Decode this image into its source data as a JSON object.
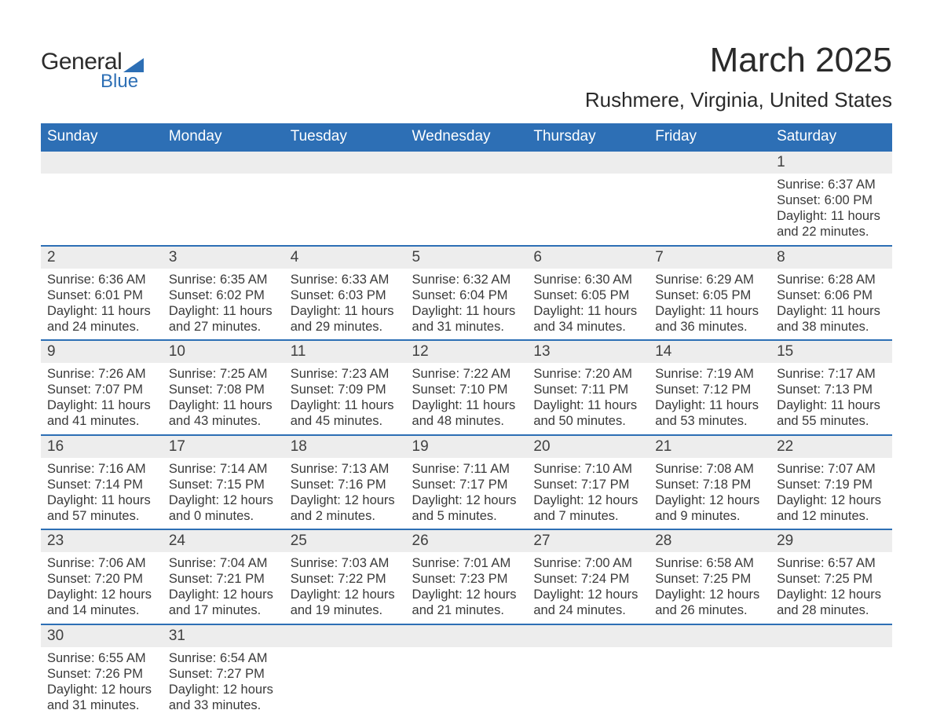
{
  "logo": {
    "main": "General",
    "sub": "Blue",
    "accent_color": "#2d6fb5"
  },
  "title": {
    "month": "March 2025",
    "location": "Rushmere, Virginia, United States"
  },
  "calendar": {
    "type": "table",
    "header_bg": "#2d6fb5",
    "header_text_color": "#ffffff",
    "row_separator_color": "#2d6fb5",
    "daynum_bg": "#ededed",
    "body_bg": "#ffffff",
    "text_color": "#3a3a3a",
    "header_fontsize": 19,
    "daynum_fontsize": 19,
    "body_fontsize": 16.5,
    "columns": [
      "Sunday",
      "Monday",
      "Tuesday",
      "Wednesday",
      "Thursday",
      "Friday",
      "Saturday"
    ],
    "weeks": [
      [
        null,
        null,
        null,
        null,
        null,
        null,
        {
          "n": "1",
          "sunrise": "6:37 AM",
          "sunset": "6:00 PM",
          "day_h": "11",
          "day_m": "22"
        }
      ],
      [
        {
          "n": "2",
          "sunrise": "6:36 AM",
          "sunset": "6:01 PM",
          "day_h": "11",
          "day_m": "24"
        },
        {
          "n": "3",
          "sunrise": "6:35 AM",
          "sunset": "6:02 PM",
          "day_h": "11",
          "day_m": "27"
        },
        {
          "n": "4",
          "sunrise": "6:33 AM",
          "sunset": "6:03 PM",
          "day_h": "11",
          "day_m": "29"
        },
        {
          "n": "5",
          "sunrise": "6:32 AM",
          "sunset": "6:04 PM",
          "day_h": "11",
          "day_m": "31"
        },
        {
          "n": "6",
          "sunrise": "6:30 AM",
          "sunset": "6:05 PM",
          "day_h": "11",
          "day_m": "34"
        },
        {
          "n": "7",
          "sunrise": "6:29 AM",
          "sunset": "6:05 PM",
          "day_h": "11",
          "day_m": "36"
        },
        {
          "n": "8",
          "sunrise": "6:28 AM",
          "sunset": "6:06 PM",
          "day_h": "11",
          "day_m": "38"
        }
      ],
      [
        {
          "n": "9",
          "sunrise": "7:26 AM",
          "sunset": "7:07 PM",
          "day_h": "11",
          "day_m": "41"
        },
        {
          "n": "10",
          "sunrise": "7:25 AM",
          "sunset": "7:08 PM",
          "day_h": "11",
          "day_m": "43"
        },
        {
          "n": "11",
          "sunrise": "7:23 AM",
          "sunset": "7:09 PM",
          "day_h": "11",
          "day_m": "45"
        },
        {
          "n": "12",
          "sunrise": "7:22 AM",
          "sunset": "7:10 PM",
          "day_h": "11",
          "day_m": "48"
        },
        {
          "n": "13",
          "sunrise": "7:20 AM",
          "sunset": "7:11 PM",
          "day_h": "11",
          "day_m": "50"
        },
        {
          "n": "14",
          "sunrise": "7:19 AM",
          "sunset": "7:12 PM",
          "day_h": "11",
          "day_m": "53"
        },
        {
          "n": "15",
          "sunrise": "7:17 AM",
          "sunset": "7:13 PM",
          "day_h": "11",
          "day_m": "55"
        }
      ],
      [
        {
          "n": "16",
          "sunrise": "7:16 AM",
          "sunset": "7:14 PM",
          "day_h": "11",
          "day_m": "57"
        },
        {
          "n": "17",
          "sunrise": "7:14 AM",
          "sunset": "7:15 PM",
          "day_h": "12",
          "day_m": "0"
        },
        {
          "n": "18",
          "sunrise": "7:13 AM",
          "sunset": "7:16 PM",
          "day_h": "12",
          "day_m": "2"
        },
        {
          "n": "19",
          "sunrise": "7:11 AM",
          "sunset": "7:17 PM",
          "day_h": "12",
          "day_m": "5"
        },
        {
          "n": "20",
          "sunrise": "7:10 AM",
          "sunset": "7:17 PM",
          "day_h": "12",
          "day_m": "7"
        },
        {
          "n": "21",
          "sunrise": "7:08 AM",
          "sunset": "7:18 PM",
          "day_h": "12",
          "day_m": "9"
        },
        {
          "n": "22",
          "sunrise": "7:07 AM",
          "sunset": "7:19 PM",
          "day_h": "12",
          "day_m": "12"
        }
      ],
      [
        {
          "n": "23",
          "sunrise": "7:06 AM",
          "sunset": "7:20 PM",
          "day_h": "12",
          "day_m": "14"
        },
        {
          "n": "24",
          "sunrise": "7:04 AM",
          "sunset": "7:21 PM",
          "day_h": "12",
          "day_m": "17"
        },
        {
          "n": "25",
          "sunrise": "7:03 AM",
          "sunset": "7:22 PM",
          "day_h": "12",
          "day_m": "19"
        },
        {
          "n": "26",
          "sunrise": "7:01 AM",
          "sunset": "7:23 PM",
          "day_h": "12",
          "day_m": "21"
        },
        {
          "n": "27",
          "sunrise": "7:00 AM",
          "sunset": "7:24 PM",
          "day_h": "12",
          "day_m": "24"
        },
        {
          "n": "28",
          "sunrise": "6:58 AM",
          "sunset": "7:25 PM",
          "day_h": "12",
          "day_m": "26"
        },
        {
          "n": "29",
          "sunrise": "6:57 AM",
          "sunset": "7:25 PM",
          "day_h": "12",
          "day_m": "28"
        }
      ],
      [
        {
          "n": "30",
          "sunrise": "6:55 AM",
          "sunset": "7:26 PM",
          "day_h": "12",
          "day_m": "31"
        },
        {
          "n": "31",
          "sunrise": "6:54 AM",
          "sunset": "7:27 PM",
          "day_h": "12",
          "day_m": "33"
        },
        null,
        null,
        null,
        null,
        null
      ]
    ],
    "labels": {
      "sunrise": "Sunrise: ",
      "sunset": "Sunset: ",
      "daylight_prefix": "Daylight: ",
      "hours_word": " hours",
      "and_word": "and ",
      "minutes_word": " minutes."
    }
  }
}
